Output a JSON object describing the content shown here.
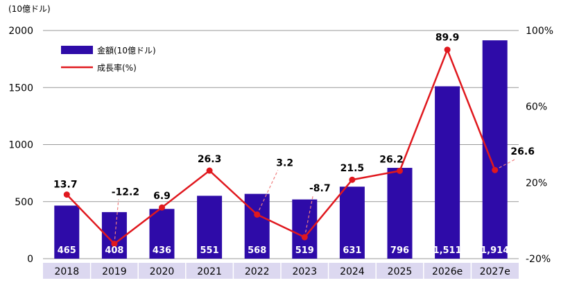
{
  "chart_data": {
    "type": "bar",
    "unit_label": "(10億ドル)",
    "categories": [
      "2018",
      "2019",
      "2020",
      "2021",
      "2022",
      "2023",
      "2024",
      "2025",
      "2026e",
      "2027e"
    ],
    "series": [
      {
        "name": "金額(10億ドル)",
        "type": "bar",
        "axis": "left",
        "values": [
          465,
          408,
          436,
          551,
          568,
          519,
          631,
          796,
          1511,
          1914
        ],
        "value_labels": [
          "465",
          "408",
          "436",
          "551",
          "568",
          "519",
          "631",
          "796",
          "1,511",
          "1,914"
        ]
      },
      {
        "name": "成長率(%)",
        "type": "line",
        "axis": "right",
        "values": [
          13.7,
          -12.2,
          6.9,
          26.3,
          3.2,
          -8.7,
          21.5,
          26.2,
          89.9,
          26.6
        ],
        "value_labels": [
          "13.7",
          "-12.2",
          "6.9",
          "26.3",
          "3.2",
          "-8.7",
          "21.5",
          "26.2",
          "89.9",
          "26.6"
        ]
      }
    ],
    "ylim_left": [
      0,
      2000
    ],
    "yticks_left": [
      "0",
      "500",
      "1000",
      "1500",
      "2000"
    ],
    "ylim_right": [
      -20,
      100
    ],
    "yticks_right": [
      "-20%",
      "20%",
      "60%",
      "100%"
    ],
    "grid": true,
    "legend_position": "top-left",
    "colors": {
      "bar": "#2e0ba8",
      "line": "#e0181e",
      "leader": "#f08080",
      "category_band": "#dcd8f0",
      "grid": "#999999"
    }
  }
}
